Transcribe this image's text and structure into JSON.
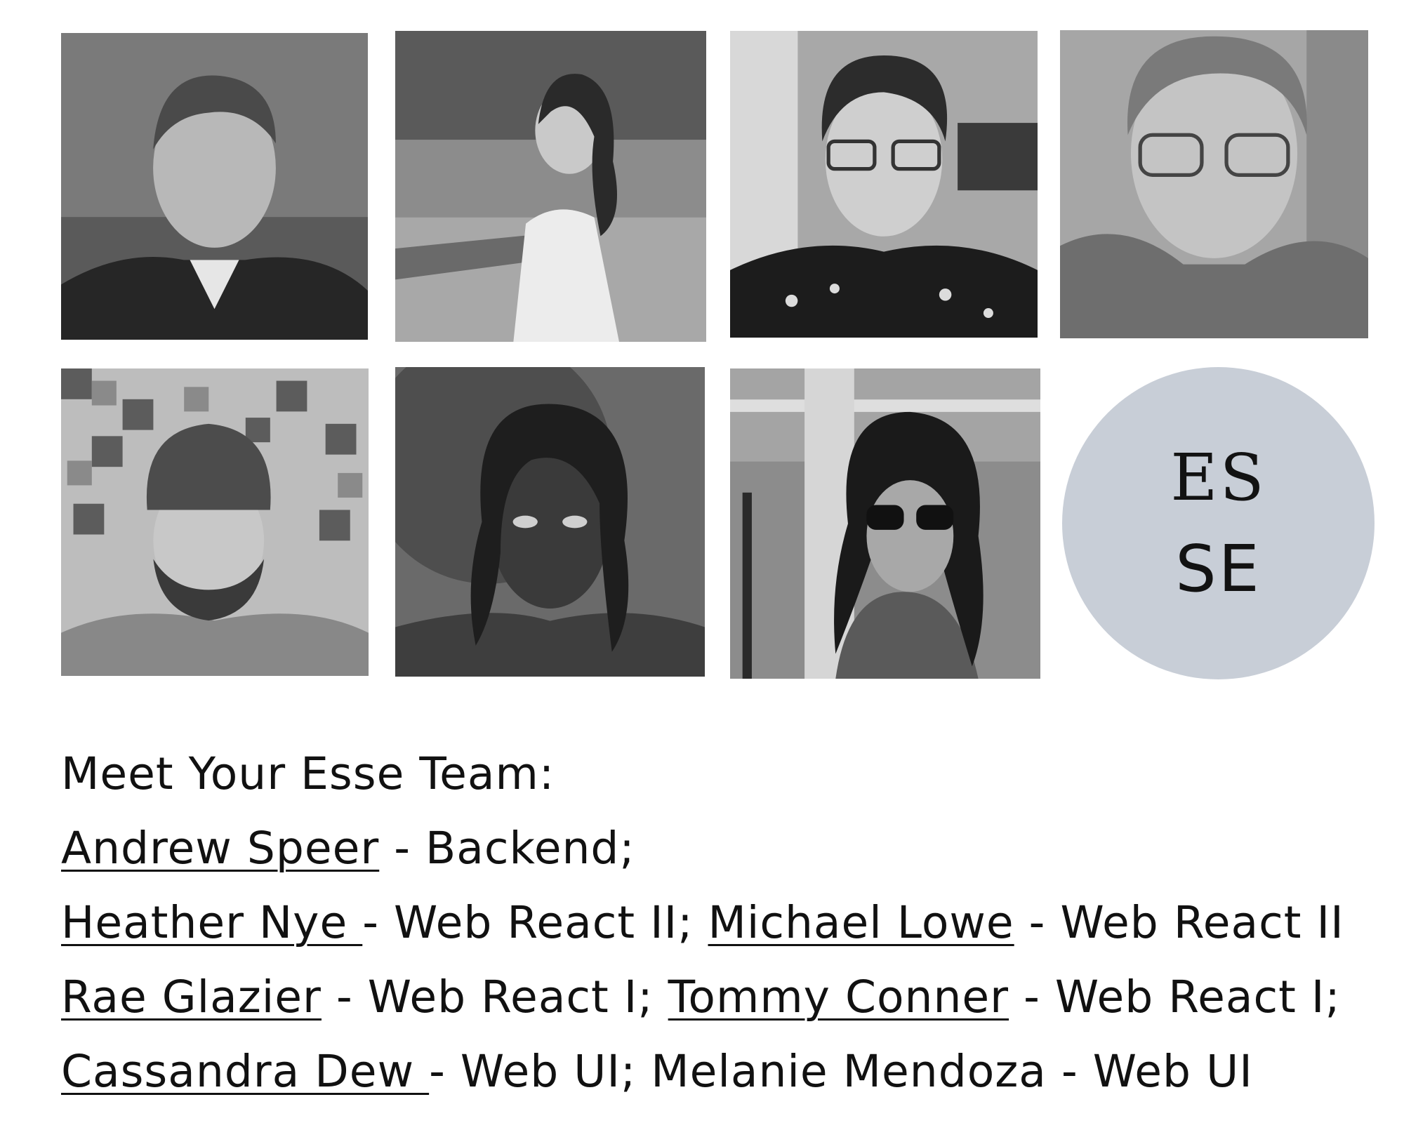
{
  "photos": [
    {
      "icon": "person-portrait-icon",
      "tone": "#6f6f6f"
    },
    {
      "icon": "person-portrait-icon",
      "tone": "#9a9a9a"
    },
    {
      "icon": "person-portrait-icon",
      "tone": "#7c7c7c"
    },
    {
      "icon": "person-portrait-icon",
      "tone": "#9e9e9e"
    },
    {
      "icon": "person-portrait-icon",
      "tone": "#8d8d8d"
    },
    {
      "icon": "person-portrait-icon",
      "tone": "#5e5e5e"
    },
    {
      "icon": "person-portrait-icon",
      "tone": "#8e8e8e"
    }
  ],
  "logo": {
    "line1": "ES",
    "line2": "SE",
    "color": "#c8ced7"
  },
  "team": {
    "heading": "Meet Your Esse Team:",
    "andrew": {
      "name": "Andrew Speer",
      "role": " - Backend;"
    },
    "heather": {
      "name": "Heather Nye ",
      "role": "- Web React II; "
    },
    "michael": {
      "name": "Michael Lowe",
      "role": " - Web React II"
    },
    "rae": {
      "name": "Rae Glazier",
      "role": " - Web React I; "
    },
    "tommy": {
      "name": "Tommy Conner",
      "role": " - Web React I;"
    },
    "cassandra": {
      "name": "Cassandra Dew ",
      "role": "- Web UI; "
    },
    "melanie": {
      "text": "Melanie Mendoza - Web UI"
    }
  }
}
